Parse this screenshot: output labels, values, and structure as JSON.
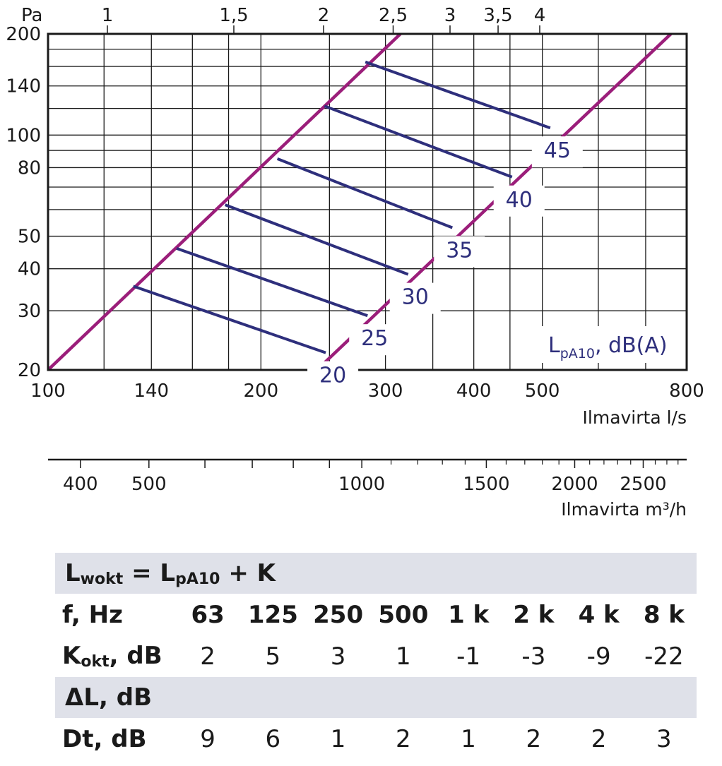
{
  "chart_data": {
    "type": "line",
    "top_axis": {
      "unit_label": "Pa",
      "ticks": [
        "1",
        "1,5",
        "2",
        "2,5",
        "3",
        "3,5",
        "4"
      ]
    },
    "y_axis": {
      "scale": "log",
      "range": [
        20,
        200
      ],
      "ticks": [
        "200",
        "140",
        "100",
        "80",
        "50",
        "40",
        "30",
        "20"
      ]
    },
    "x_axis": {
      "scale": "log",
      "range": [
        100,
        800
      ],
      "ticks": [
        "100",
        "140",
        "200",
        "300",
        "400",
        "500",
        "800"
      ],
      "label": "Ilmavirta l/s"
    },
    "x2_axis": {
      "scale": "log",
      "ticks": [
        "400",
        "500",
        "1000",
        "1500",
        "2000",
        "2500"
      ],
      "label": "Ilmavirta m³/h"
    },
    "grid": true,
    "boundary_lines": [
      {
        "points": [
          [
            100,
            20
          ],
          [
            315,
            200
          ]
        ]
      },
      {
        "points": [
          [
            240,
            20
          ],
          [
            760,
            200
          ]
        ]
      }
    ],
    "series": [
      {
        "name": "20",
        "points": [
          [
            132,
            35.5
          ],
          [
            247,
            22.5
          ]
        ]
      },
      {
        "name": "25",
        "points": [
          [
            152,
            46
          ],
          [
            283,
            29
          ]
        ]
      },
      {
        "name": "30",
        "points": [
          [
            178,
            62
          ],
          [
            323,
            38.5
          ]
        ]
      },
      {
        "name": "35",
        "points": [
          [
            211,
            85
          ],
          [
            373,
            53
          ]
        ]
      },
      {
        "name": "40",
        "points": [
          [
            246,
            122
          ],
          [
            453,
            75
          ]
        ]
      },
      {
        "name": "45",
        "points": [
          [
            281,
            165
          ],
          [
            513,
            105
          ]
        ]
      }
    ],
    "legend_title": {
      "main": "L",
      "sub": "pA10",
      "rest": ", dB(A)"
    }
  },
  "table": {
    "formula": {
      "l1": "L",
      "s1": "wokt",
      "mid": " = L",
      "s2": "pA10",
      "end": " + K"
    },
    "freq_label": "f, Hz",
    "frequencies": [
      "63",
      "125",
      "250",
      "500",
      "1 k",
      "2 k",
      "4 k",
      "8 k"
    ],
    "k_label": {
      "main": "K",
      "sub": "okt",
      "rest": ", dB"
    },
    "k_values": [
      "2",
      "5",
      "3",
      "1",
      "-1",
      "-3",
      "-9",
      "-22"
    ],
    "delta_header": "ΔL, dB",
    "dt_label": "Dt, dB",
    "dt_values": [
      "9",
      "6",
      "1",
      "2",
      "1",
      "2",
      "2",
      "3"
    ]
  }
}
